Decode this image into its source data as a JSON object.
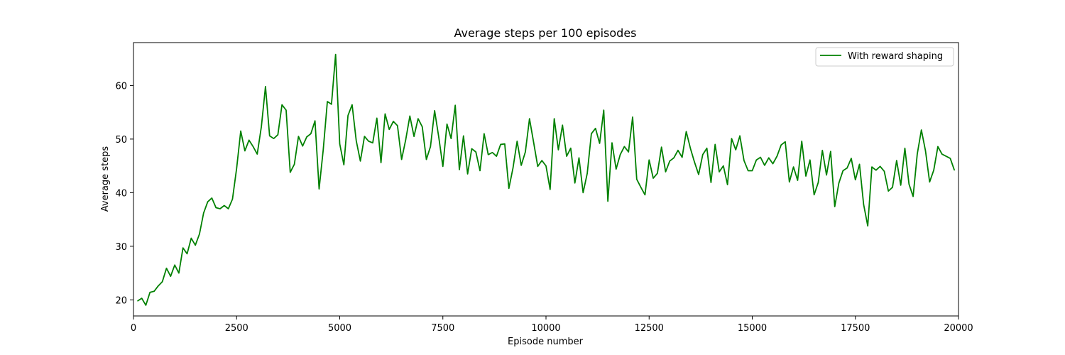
{
  "chart_data": {
    "type": "line",
    "title": "Average steps per 100 episodes",
    "xlabel": "Episode number",
    "ylabel": "Average steps",
    "xlim": [
      0,
      20000
    ],
    "ylim": [
      17,
      68
    ],
    "xticks": [
      0,
      2500,
      5000,
      7500,
      10000,
      12500,
      15000,
      17500,
      20000
    ],
    "yticks": [
      20,
      30,
      40,
      50,
      60
    ],
    "grid": false,
    "legend_position": "top-right",
    "series": [
      {
        "name": "With reward shaping",
        "color": "#008000",
        "x": [
          100,
          200,
          300,
          400,
          500,
          600,
          700,
          800,
          900,
          1000,
          1100,
          1200,
          1300,
          1400,
          1500,
          1600,
          1700,
          1800,
          1900,
          2000,
          2100,
          2200,
          2300,
          2400,
          2500,
          2600,
          2700,
          2800,
          2900,
          3000,
          3100,
          3200,
          3300,
          3400,
          3500,
          3600,
          3700,
          3800,
          3900,
          4000,
          4100,
          4200,
          4300,
          4400,
          4500,
          4600,
          4700,
          4800,
          4900,
          5000,
          5100,
          5200,
          5300,
          5400,
          5500,
          5600,
          5700,
          5800,
          5900,
          6000,
          6100,
          6200,
          6300,
          6400,
          6500,
          6600,
          6700,
          6800,
          6900,
          7000,
          7100,
          7200,
          7300,
          7400,
          7500,
          7600,
          7700,
          7800,
          7900,
          8000,
          8100,
          8200,
          8300,
          8400,
          8500,
          8600,
          8700,
          8800,
          8900,
          9000,
          9100,
          9200,
          9300,
          9400,
          9500,
          9600,
          9700,
          9800,
          9900,
          10000,
          10100,
          10200,
          10300,
          10400,
          10500,
          10600,
          10700,
          10800,
          10900,
          11000,
          11100,
          11200,
          11300,
          11400,
          11500,
          11600,
          11700,
          11800,
          11900,
          12000,
          12100,
          12200,
          12300,
          12400,
          12500,
          12600,
          12700,
          12800,
          12900,
          13000,
          13100,
          13200,
          13300,
          13400,
          13500,
          13600,
          13700,
          13800,
          13900,
          14000,
          14100,
          14200,
          14300,
          14400,
          14500,
          14600,
          14700,
          14800,
          14900,
          15000,
          15100,
          15200,
          15300,
          15400,
          15500,
          15600,
          15700,
          15800,
          15900,
          16000,
          16100,
          16200,
          16300,
          16400,
          16500,
          16600,
          16700,
          16800,
          16900,
          17000,
          17100,
          17200,
          17300,
          17400,
          17500,
          17600,
          17700,
          17800,
          17900,
          18000,
          18100,
          18200,
          18300,
          18400,
          18500,
          18600,
          18700,
          18800,
          18900,
          19000,
          19100,
          19200,
          19300,
          19400,
          19500,
          19600,
          19700,
          19800,
          19900
        ],
        "values": [
          19.8,
          20.3,
          19.0,
          21.4,
          21.6,
          22.6,
          23.4,
          25.9,
          24.4,
          26.5,
          25.0,
          29.7,
          28.6,
          31.5,
          30.2,
          32.3,
          36.2,
          38.3,
          39.0,
          37.2,
          37.0,
          37.6,
          37.0,
          38.8,
          44.5,
          51.5,
          47.8,
          49.8,
          48.6,
          47.2,
          52.3,
          59.8,
          50.6,
          50.1,
          50.8,
          56.4,
          55.4,
          43.8,
          45.3,
          50.5,
          48.7,
          50.4,
          51.0,
          53.4,
          40.7,
          48.0,
          57.0,
          56.5,
          65.8,
          49.1,
          45.2,
          54.4,
          56.4,
          49.7,
          45.9,
          50.5,
          49.6,
          49.3,
          53.9,
          45.6,
          54.7,
          51.8,
          53.3,
          52.5,
          46.2,
          49.9,
          54.3,
          50.5,
          53.8,
          52.3,
          46.2,
          48.6,
          55.3,
          50.4,
          44.9,
          52.8,
          50.1,
          56.3,
          44.3,
          50.6,
          43.5,
          48.2,
          47.6,
          44.1,
          51.0,
          47.1,
          47.5,
          46.8,
          49.0,
          49.1,
          40.8,
          44.6,
          49.6,
          45.1,
          47.6,
          53.8,
          49.4,
          44.9,
          46.0,
          45.0,
          40.6,
          53.8,
          48.0,
          52.6,
          46.8,
          48.3,
          41.8,
          46.5,
          40.0,
          43.6,
          51.0,
          52.0,
          49.2,
          55.4,
          38.4,
          49.3,
          44.4,
          47.1,
          48.6,
          47.6,
          54.1,
          42.5,
          41.0,
          39.6,
          46.1,
          42.7,
          43.6,
          48.5,
          43.9,
          45.9,
          46.5,
          47.9,
          46.6,
          51.4,
          48.3,
          45.7,
          43.4,
          47.1,
          48.3,
          41.9,
          49.0,
          43.9,
          45.0,
          41.5,
          50.1,
          48.0,
          50.6,
          46.0,
          44.1,
          44.1,
          46.1,
          46.6,
          45.1,
          46.5,
          45.4,
          46.8,
          48.9,
          49.5,
          42.0,
          44.8,
          42.3,
          49.6,
          43.1,
          46.1,
          39.6,
          41.9,
          47.9,
          43.3,
          47.7,
          37.4,
          41.8,
          44.1,
          44.6,
          46.4,
          42.4,
          45.3,
          37.8,
          33.8,
          44.8,
          44.2,
          44.9,
          44.0,
          40.3,
          41.0,
          46.0,
          41.4,
          48.3,
          41.6,
          39.3,
          47.2,
          51.7,
          47.8,
          42.0,
          44.2,
          48.6,
          47.2,
          46.8,
          46.4,
          44.2
        ]
      }
    ]
  }
}
